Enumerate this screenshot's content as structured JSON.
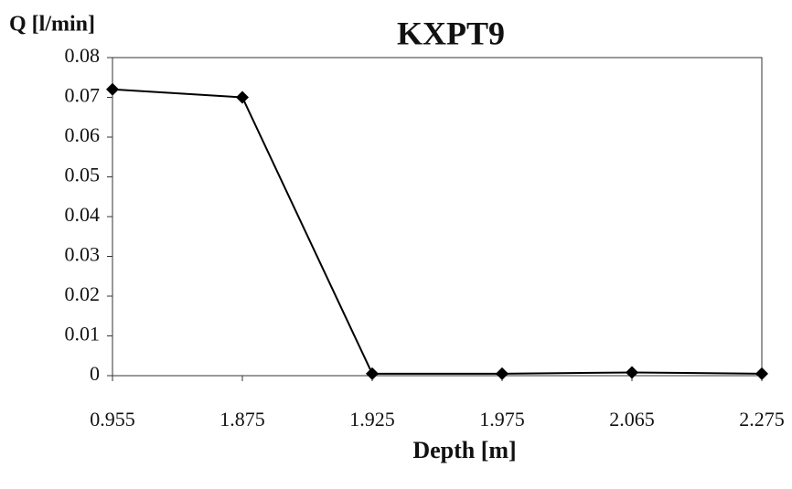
{
  "chart_data": {
    "type": "line",
    "title": "KXPT9",
    "y_label": "Q [l/min]",
    "x_label": "Depth [m]",
    "categories": [
      "0.955",
      "1.875",
      "1.925",
      "1.975",
      "2.065",
      "2.275"
    ],
    "series": [
      {
        "name": "Q",
        "color": "#000000",
        "values": [
          0.072,
          0.07,
          0.0005,
          0.0005,
          0.0008,
          0.0005
        ]
      }
    ],
    "ylim": [
      0,
      0.08
    ],
    "yticks": [
      0,
      0.01,
      0.02,
      0.03,
      0.04,
      0.05,
      0.06,
      0.07,
      0.08
    ],
    "grid": false
  }
}
